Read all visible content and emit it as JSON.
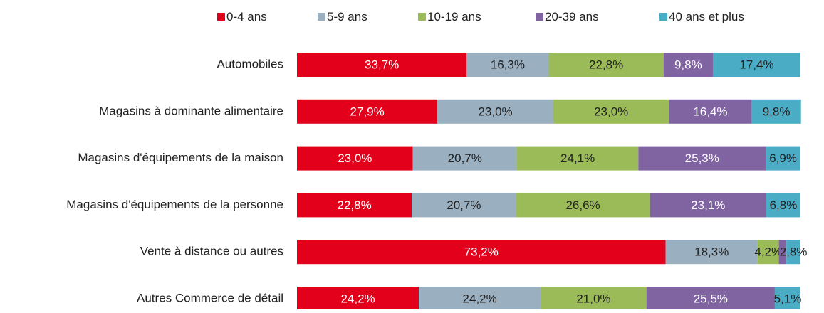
{
  "chart_data": {
    "type": "stacked-bar-horizontal",
    "categories": [
      "Automobiles",
      "Magasins à dominante alimentaire",
      "Magasins d'équipements de la maison",
      "Magasins d'équipements de la personne",
      "Vente à distance ou autres",
      "Autres Commerce de détail"
    ],
    "xlim": [
      0,
      100
    ],
    "legend": "top",
    "series": [
      {
        "name": "0-4 ans",
        "color": "#e3001b",
        "label_color": "#ffffff",
        "values": [
          33.7,
          27.9,
          23.0,
          22.8,
          73.2,
          24.2
        ],
        "value_labels": [
          "33,7%",
          "27,9%",
          "23,0%",
          "22,8%",
          "73,2%",
          "24,2%"
        ]
      },
      {
        "name": "5-9 ans",
        "color": "#9aafc0",
        "label_color": "#222222",
        "values": [
          16.3,
          23.0,
          20.7,
          20.7,
          18.3,
          24.2
        ],
        "value_labels": [
          "16,3%",
          "23,0%",
          "20,7%",
          "20,7%",
          "18,3%",
          "24,2%"
        ]
      },
      {
        "name": "10-19 ans",
        "color": "#9bbb59",
        "label_color": "#222222",
        "values": [
          22.8,
          23.0,
          24.1,
          26.6,
          4.2,
          21.0
        ],
        "value_labels": [
          "22,8%",
          "23,0%",
          "24,1%",
          "26,6%",
          "4,2%",
          "21,0%"
        ]
      },
      {
        "name": "20-39 ans",
        "color": "#8064a2",
        "label_color": "#ffffff",
        "values": [
          9.8,
          16.4,
          25.3,
          23.1,
          1.5,
          25.5
        ],
        "value_labels": [
          "9,8%",
          "16,4%",
          "25,3%",
          "23,1%",
          null,
          "25,5%"
        ]
      },
      {
        "name": "40 ans et plus",
        "color": "#4bacc6",
        "label_color": "#222222",
        "values": [
          17.4,
          9.8,
          6.9,
          6.8,
          2.8,
          5.1
        ],
        "value_labels": [
          "17,4%",
          "9,8%",
          "6,9%",
          "6,8%",
          "2,8%",
          "5,1%"
        ]
      }
    ]
  }
}
